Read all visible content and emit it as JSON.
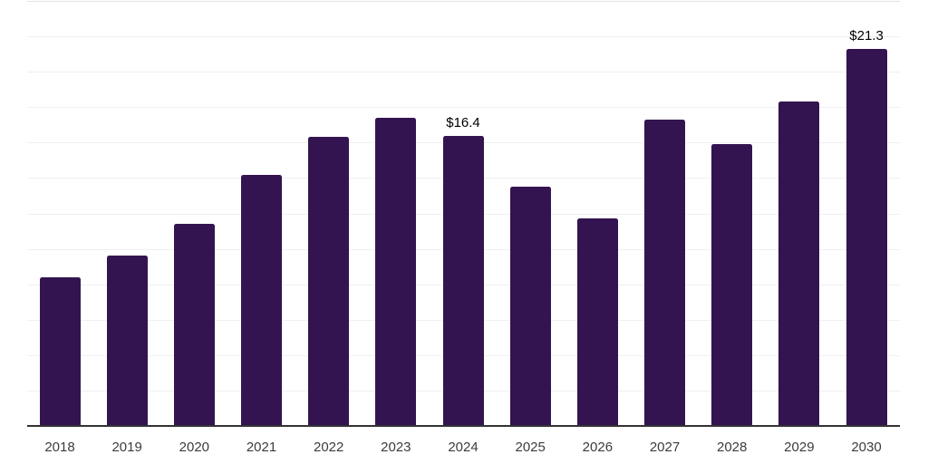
{
  "chart_data": {
    "type": "bar",
    "title": "",
    "xlabel": "",
    "ylabel": "",
    "categories": [
      "2018",
      "2019",
      "2020",
      "2021",
      "2022",
      "2023",
      "2024",
      "2025",
      "2026",
      "2027",
      "2028",
      "2029",
      "2030"
    ],
    "values": [
      8.4,
      9.6,
      11.4,
      14.2,
      16.3,
      17.4,
      16.4,
      13.5,
      11.7,
      17.3,
      15.9,
      18.3,
      21.3
    ],
    "value_labels": [
      "",
      "",
      "",
      "",
      "",
      "",
      "$16.4",
      "",
      "",
      "",
      "",
      "",
      "$21.3"
    ],
    "ylim": [
      0,
      24
    ],
    "gridline_step": 2,
    "grid": "horizontal-only",
    "legend": "none",
    "colors": {
      "bar": "#341450",
      "axis_line": "#333333",
      "gridline": "#f0f0f0",
      "top_gridline": "#e2e2e2",
      "x_label": "#3c3c3c",
      "value_label": "#000000",
      "background": "#ffffff"
    }
  }
}
